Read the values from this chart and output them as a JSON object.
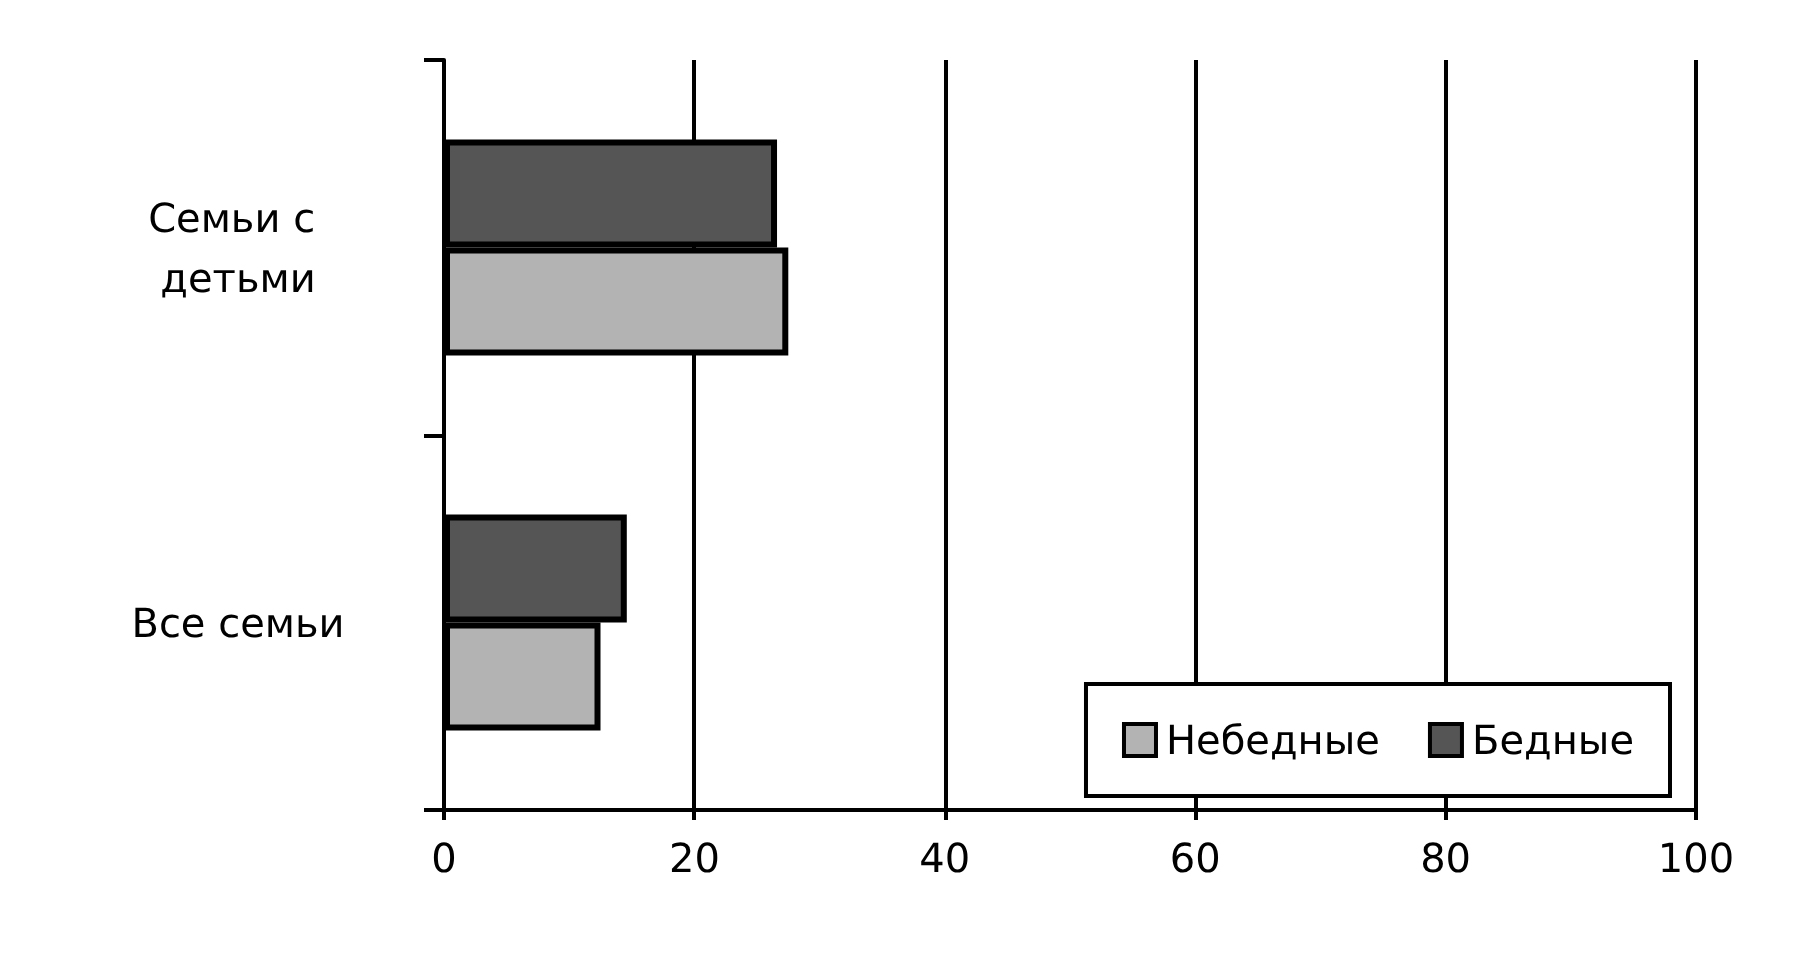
{
  "chart_data": {
    "type": "bar",
    "orientation": "horizontal",
    "categories": [
      "Семьи с детьми",
      "Все семьи"
    ],
    "series": [
      {
        "name": "Бедные",
        "color": "#555555",
        "values": [
          26.6,
          14.6
        ]
      },
      {
        "name": "Небедные",
        "color": "#b3b3b3",
        "values": [
          27.5,
          12.5
        ]
      }
    ],
    "xlim": [
      0,
      100
    ],
    "xticks": [
      0,
      20,
      40,
      60,
      80,
      100
    ],
    "grid": "x",
    "legend": "bottom right"
  }
}
